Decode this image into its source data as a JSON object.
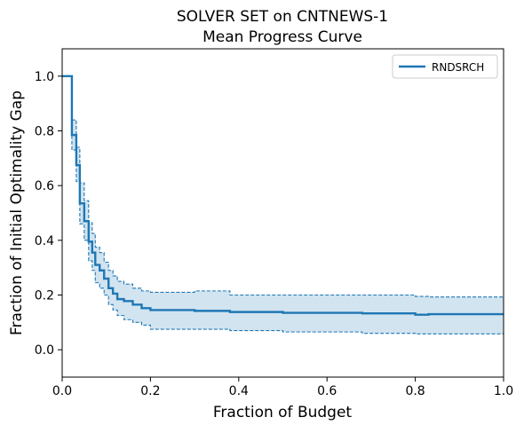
{
  "chart_data": {
    "type": "line",
    "title": "SOLVER SET on CNTNEWS-1",
    "subtitle": "Mean Progress Curve",
    "xlabel": "Fraction of Budget",
    "ylabel": "Fraction of Initial Optimality Gap",
    "xlim": [
      0.0,
      1.0
    ],
    "ylim": [
      -0.1,
      1.1
    ],
    "xticks": [
      0.0,
      0.2,
      0.4,
      0.6,
      0.8,
      1.0
    ],
    "xtick_labels": [
      "0.0",
      "0.2",
      "0.4",
      "0.6",
      "0.8",
      "1.0"
    ],
    "yticks": [
      0.0,
      0.2,
      0.4,
      0.6,
      0.8,
      1.0
    ],
    "ytick_labels": [
      "0.0",
      "0.2",
      "0.4",
      "0.6",
      "0.8",
      "1.0"
    ],
    "grid": false,
    "legend_position": "top-right",
    "color": "#1f77b4",
    "series": [
      {
        "name": "RNDSRCH",
        "style": "step",
        "x": [
          0.0,
          0.022,
          0.032,
          0.04,
          0.05,
          0.06,
          0.068,
          0.075,
          0.085,
          0.095,
          0.105,
          0.115,
          0.125,
          0.14,
          0.16,
          0.18,
          0.2,
          0.3,
          0.38,
          0.5,
          0.68,
          0.8,
          0.83,
          1.0
        ],
        "y": [
          1.0,
          0.785,
          0.675,
          0.535,
          0.47,
          0.395,
          0.355,
          0.31,
          0.29,
          0.26,
          0.225,
          0.205,
          0.185,
          0.178,
          0.165,
          0.152,
          0.145,
          0.142,
          0.138,
          0.135,
          0.133,
          0.128,
          0.13,
          0.13
        ]
      }
    ],
    "confidence_band": {
      "x": [
        0.0,
        0.022,
        0.032,
        0.04,
        0.05,
        0.06,
        0.068,
        0.075,
        0.085,
        0.095,
        0.105,
        0.115,
        0.125,
        0.14,
        0.16,
        0.18,
        0.2,
        0.3,
        0.38,
        0.5,
        0.68,
        0.8,
        0.83,
        1.0
      ],
      "upper": [
        1.0,
        0.84,
        0.74,
        0.61,
        0.545,
        0.465,
        0.425,
        0.375,
        0.355,
        0.32,
        0.29,
        0.27,
        0.25,
        0.24,
        0.225,
        0.215,
        0.21,
        0.215,
        0.2,
        0.2,
        0.2,
        0.195,
        0.193,
        0.193
      ],
      "lower": [
        1.0,
        0.73,
        0.615,
        0.46,
        0.4,
        0.325,
        0.29,
        0.245,
        0.225,
        0.2,
        0.165,
        0.145,
        0.125,
        0.11,
        0.1,
        0.09,
        0.075,
        0.075,
        0.07,
        0.065,
        0.06,
        0.058,
        0.058,
        0.058
      ]
    }
  }
}
